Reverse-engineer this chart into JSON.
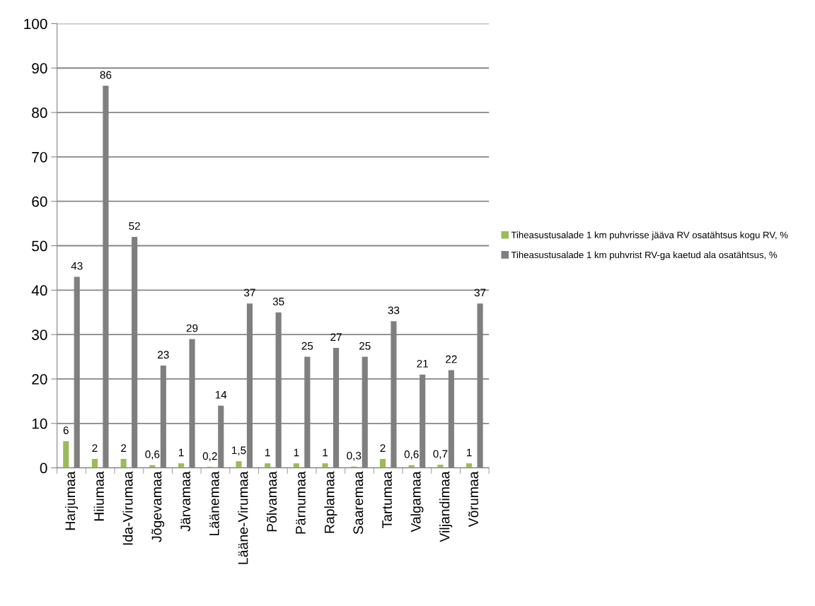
{
  "chart_data": {
    "type": "bar",
    "categories": [
      "Harjumaa",
      "Hiiumaa",
      "Ida-Virumaa",
      "Jõgevamaa",
      "Järvamaa",
      "Läänemaa",
      "Lääne-Virumaa",
      "Põlvamaa",
      "Pärnumaa",
      "Raplamaa",
      "Saaremaa",
      "Tartumaa",
      "Valgamaa",
      "Viljandimaa",
      "Võrumaa"
    ],
    "series": [
      {
        "name": "Tiheasustusalade 1 km puhvrisse jääva RV osatähtsus kogu RV, %",
        "color": "#9bbb59",
        "values": [
          6,
          2,
          2,
          0.6,
          1,
          0.2,
          1.5,
          1,
          1,
          1,
          0.3,
          2,
          0.6,
          0.7,
          1
        ],
        "value_labels": [
          "6",
          "2",
          "2",
          "0,6",
          "1",
          "0,2",
          "1,5",
          "1",
          "1",
          "1",
          "0,3",
          "2",
          "0,6",
          "0,7",
          "1"
        ]
      },
      {
        "name": "Tiheasustusalade 1 km puhvrist RV-ga kaetud ala osatähtsus, %",
        "color": "#7f7f7f",
        "values": [
          43,
          86,
          52,
          23,
          29,
          14,
          37,
          35,
          25,
          27,
          25,
          33,
          21,
          22,
          37
        ],
        "value_labels": [
          "43",
          "86",
          "52",
          "23",
          "29",
          "14",
          "37",
          "35",
          "25",
          "27",
          "25",
          "33",
          "21",
          "22",
          "37"
        ]
      }
    ],
    "ylim": [
      0,
      100
    ],
    "yticks": [
      0,
      10,
      20,
      30,
      40,
      50,
      60,
      70,
      80,
      90,
      100
    ],
    "grid": "y",
    "legend": "right"
  }
}
